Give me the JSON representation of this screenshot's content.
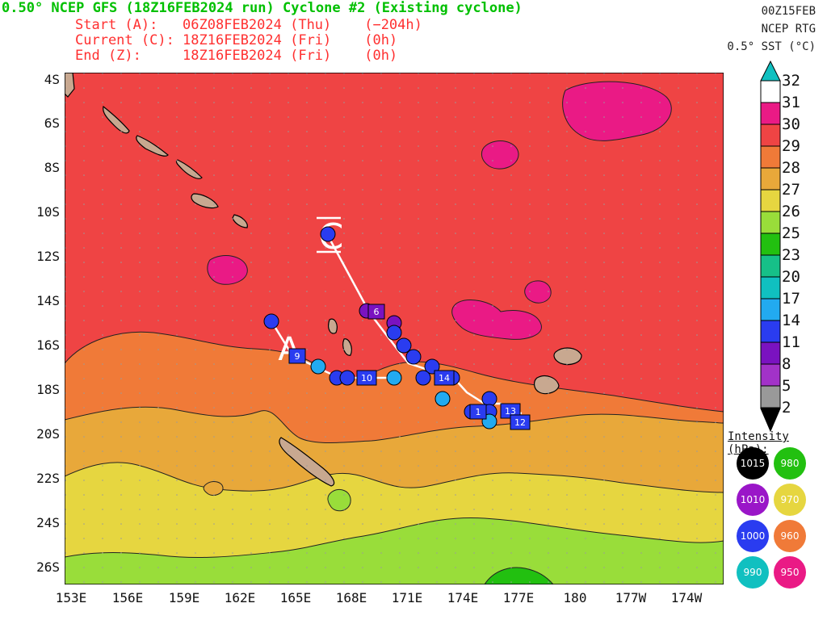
{
  "header": {
    "title": "0.50° NCEP GFS (18Z16FEB2024 run) Cyclone #2 (Existing cyclone)",
    "start": "Start (A):   06Z08FEB2024 (Thu)    (−204h)",
    "current": "Current (C): 18Z16FEB2024 (Fri)    (0h)",
    "end": "End (Z):     18Z16FEB2024 (Fri)    (0h)"
  },
  "right_header": {
    "date": "00Z15FEB",
    "source": "NCEP RTG",
    "product": "0.5° SST (°C)"
  },
  "colorbar": {
    "labels": [
      "32",
      "31",
      "30",
      "29",
      "28",
      "27",
      "26",
      "25",
      "23",
      "20",
      "17",
      "14",
      "11",
      "8",
      "5",
      "2"
    ],
    "colors": [
      "#ffffff",
      "#ea1a85",
      "#ef4444",
      "#f07a38",
      "#e8a83a",
      "#e6d640",
      "#99dd3a",
      "#22c010",
      "#16c088",
      "#10c0c0",
      "#22aaf0",
      "#2a3cf0",
      "#7a12c0",
      "#a232c8",
      "#999999"
    ]
  },
  "y_axis": [
    "4S",
    "6S",
    "8S",
    "10S",
    "12S",
    "14S",
    "16S",
    "18S",
    "20S",
    "22S",
    "24S",
    "26S"
  ],
  "x_axis": [
    "153E",
    "156E",
    "159E",
    "162E",
    "165E",
    "168E",
    "171E",
    "174E",
    "177E",
    "180",
    "177W",
    "174W"
  ],
  "intensity_legend": {
    "title": "Intensity (hPa):",
    "items": [
      {
        "label": "1015",
        "color": "#000000"
      },
      {
        "label": "980",
        "color": "#22c010"
      },
      {
        "label": "1010",
        "color": "#9a16c8"
      },
      {
        "label": "970",
        "color": "#e6d640"
      },
      {
        "label": "1000",
        "color": "#2a3cf0"
      },
      {
        "label": "960",
        "color": "#f07a38"
      },
      {
        "label": "990",
        "color": "#10c0c0"
      },
      {
        "label": "950",
        "color": "#ea1a85"
      }
    ]
  },
  "track": {
    "start_marker": "A",
    "current_marker": "C",
    "day_labels": [
      "6",
      "9",
      "10",
      "14",
      "1",
      "13",
      "12"
    ]
  }
}
